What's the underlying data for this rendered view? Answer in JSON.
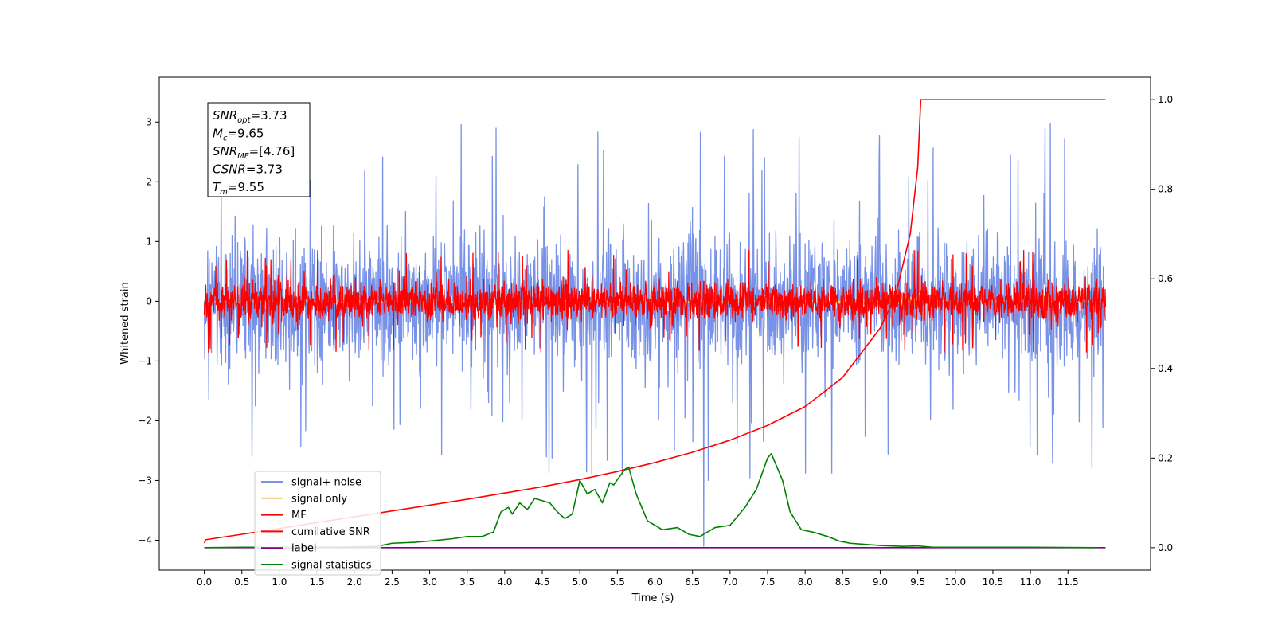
{
  "chart_data": {
    "type": "line",
    "xlabel": "Time (s)",
    "ylabel": "Whitened strain",
    "xlim": [
      -0.6,
      12.6
    ],
    "ylim": [
      -4.5,
      3.75
    ],
    "y2lim": [
      -0.05,
      1.05
    ],
    "x_ticks": [
      0.0,
      0.5,
      1.0,
      1.5,
      2.0,
      2.5,
      3.0,
      3.5,
      4.0,
      4.5,
      5.0,
      5.5,
      6.0,
      6.5,
      7.0,
      7.5,
      8.0,
      8.5,
      9.0,
      9.5,
      10.0,
      10.5,
      11.0,
      11.5
    ],
    "x_tick_labels": [
      "0.0",
      "0.5",
      "1.0",
      "1.5",
      "2.0",
      "2.5",
      "3.0",
      "3.5",
      "4.0",
      "4.5",
      "5.0",
      "5.5",
      "6.0",
      "6.5",
      "7.0",
      "7.5",
      "8.0",
      "8.5",
      "9.0",
      "9.5",
      "10.0",
      "10.5",
      "11.0",
      "11.5"
    ],
    "y_ticks": [
      3,
      2,
      1,
      0,
      -1,
      -2,
      -3,
      -4
    ],
    "y_tick_labels": [
      "3",
      "2",
      "1",
      "0",
      "−1",
      "−2",
      "−3",
      "−4"
    ],
    "y2_ticks": [
      1.0,
      0.8,
      0.6,
      0.4,
      0.2,
      0.0
    ],
    "y2_tick_labels": [
      "1.0",
      "0.8",
      "0.6",
      "0.4",
      "0.2",
      "0.0"
    ],
    "grid": false,
    "legend_placement": "lower-left",
    "annotation": {
      "lines": [
        {
          "sym": "SNR",
          "sub": "opt",
          "val": "=3.73"
        },
        {
          "sym": "M",
          "sub": "c",
          "val": "=9.65"
        },
        {
          "sym": "SNR",
          "sub": "MF",
          "val": "=[4.76]"
        },
        {
          "sym": "CSNR",
          "sub": "",
          "val": "=3.73"
        },
        {
          "sym": "T",
          "sub": "m",
          "val": "=9.55"
        }
      ]
    },
    "series": [
      {
        "name": "signal+ noise",
        "color": "#7892e7",
        "axis": "left",
        "kind": "noise",
        "x_range": [
          0.0,
          12.0
        ],
        "center": 0.0,
        "amplitude_typical": 1.0,
        "amplitude_max": 3.35,
        "spike_x": 6.65,
        "spike_y": -4.1
      },
      {
        "name": "signal only",
        "color": "#f5c96e",
        "axis": "left",
        "kind": "chirp",
        "x_range": [
          0.0,
          12.0
        ],
        "peak_x": 9.55,
        "peak_amplitude": 0.3
      },
      {
        "name": "MF",
        "color": "#ff0000",
        "axis": "left",
        "kind": "noise",
        "x_range": [
          0.0,
          12.0
        ],
        "center": 0.0,
        "amplitude_typical": 0.3,
        "amplitude_max": 0.85
      },
      {
        "name": "cumilative SNR",
        "color": "#ff0000",
        "axis": "right",
        "points": [
          [
            0.0,
            0.01
          ],
          [
            0.02,
            0.018
          ],
          [
            0.5,
            0.03
          ],
          [
            1.0,
            0.043
          ],
          [
            1.5,
            0.056
          ],
          [
            2.0,
            0.069
          ],
          [
            2.5,
            0.082
          ],
          [
            3.0,
            0.095
          ],
          [
            3.5,
            0.108
          ],
          [
            4.0,
            0.122
          ],
          [
            4.5,
            0.136
          ],
          [
            5.0,
            0.152
          ],
          [
            5.5,
            0.17
          ],
          [
            6.0,
            0.19
          ],
          [
            6.5,
            0.213
          ],
          [
            7.0,
            0.24
          ],
          [
            7.5,
            0.273
          ],
          [
            8.0,
            0.315
          ],
          [
            8.5,
            0.38
          ],
          [
            9.0,
            0.49
          ],
          [
            9.2,
            0.56
          ],
          [
            9.4,
            0.7
          ],
          [
            9.5,
            0.85
          ],
          [
            9.54,
            1.0
          ],
          [
            12.0,
            1.0
          ]
        ]
      },
      {
        "name": "label",
        "color": "#800080",
        "axis": "right",
        "points": [
          [
            0.0,
            0.0
          ],
          [
            12.0,
            0.0
          ]
        ]
      },
      {
        "name": "signal statistics",
        "color": "#008000",
        "axis": "right",
        "points": [
          [
            0.0,
            0.0
          ],
          [
            0.5,
            0.001
          ],
          [
            1.0,
            0.001
          ],
          [
            1.5,
            0.001
          ],
          [
            2.0,
            0.002
          ],
          [
            2.3,
            0.003
          ],
          [
            2.5,
            0.01
          ],
          [
            2.8,
            0.012
          ],
          [
            3.0,
            0.015
          ],
          [
            3.3,
            0.02
          ],
          [
            3.5,
            0.025
          ],
          [
            3.7,
            0.025
          ],
          [
            3.85,
            0.035
          ],
          [
            3.95,
            0.08
          ],
          [
            4.05,
            0.09
          ],
          [
            4.1,
            0.075
          ],
          [
            4.2,
            0.1
          ],
          [
            4.3,
            0.085
          ],
          [
            4.4,
            0.11
          ],
          [
            4.6,
            0.1
          ],
          [
            4.7,
            0.08
          ],
          [
            4.8,
            0.065
          ],
          [
            4.9,
            0.075
          ],
          [
            5.0,
            0.15
          ],
          [
            5.1,
            0.12
          ],
          [
            5.2,
            0.13
          ],
          [
            5.3,
            0.1
          ],
          [
            5.4,
            0.145
          ],
          [
            5.45,
            0.14
          ],
          [
            5.6,
            0.175
          ],
          [
            5.65,
            0.18
          ],
          [
            5.75,
            0.12
          ],
          [
            5.9,
            0.06
          ],
          [
            6.1,
            0.04
          ],
          [
            6.3,
            0.045
          ],
          [
            6.45,
            0.03
          ],
          [
            6.6,
            0.025
          ],
          [
            6.65,
            0.03
          ],
          [
            6.8,
            0.045
          ],
          [
            7.0,
            0.05
          ],
          [
            7.2,
            0.09
          ],
          [
            7.35,
            0.13
          ],
          [
            7.5,
            0.2
          ],
          [
            7.55,
            0.21
          ],
          [
            7.7,
            0.15
          ],
          [
            7.8,
            0.08
          ],
          [
            7.95,
            0.04
          ],
          [
            8.1,
            0.035
          ],
          [
            8.3,
            0.025
          ],
          [
            8.45,
            0.015
          ],
          [
            8.6,
            0.01
          ],
          [
            9.0,
            0.005
          ],
          [
            9.3,
            0.003
          ],
          [
            9.5,
            0.004
          ],
          [
            9.7,
            0.001
          ],
          [
            10.5,
            0.001
          ],
          [
            11.0,
            0.001
          ],
          [
            11.9,
            0.0
          ]
        ]
      }
    ]
  }
}
